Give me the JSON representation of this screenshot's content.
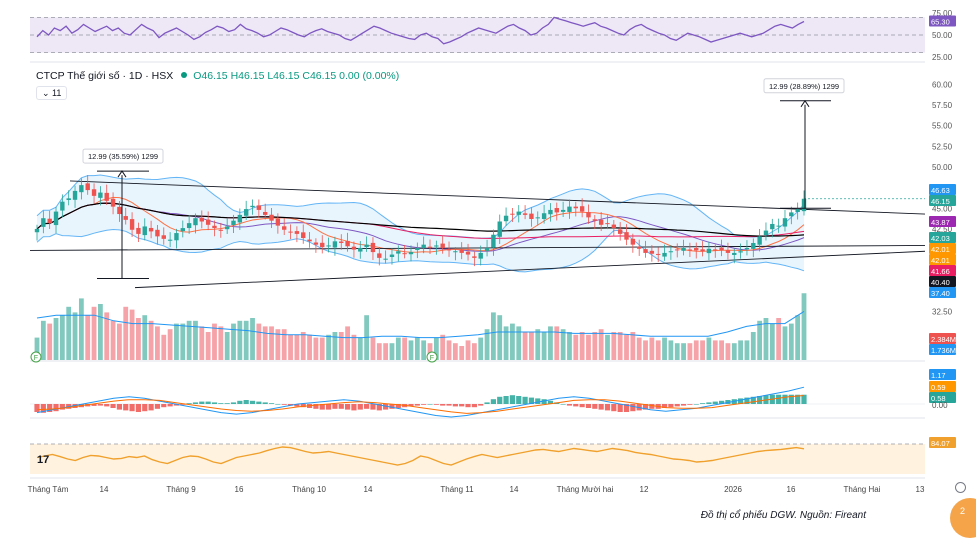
{
  "header": {
    "symbol_line": "CTCP Thế giới số · 1D · HSX",
    "ohlc": "O46.15 H46.15 L46.15 C46.15 0.00 (0.00%)",
    "interval_toggle": "⌄ 11"
  },
  "caption": "Đồ thị cổ phiếu DGW. Nguồn: Fireant",
  "corner_badge": "2",
  "pane_logo": "17",
  "colors": {
    "up": "#26a69a",
    "down": "#ef5350",
    "volume_up": "#81c9be",
    "volume_down": "#f5a3a8",
    "rsi": "#7e57c2",
    "rsi_band": "#ede7f6",
    "bb_fill": "#dbeefc",
    "bb_line": "#64b5f6",
    "stoch_band": "#fff3e0",
    "stoch_line": "#f0a02c"
  },
  "chart_data": [
    {
      "type": "line",
      "name": "RSI",
      "y_ticks": [
        "75.00",
        "50.00",
        "25.00"
      ],
      "ylim": [
        25,
        75
      ],
      "current_label": "65.30",
      "values": [
        48,
        55,
        50,
        58,
        55,
        60,
        52,
        56,
        62,
        58,
        54,
        57,
        60,
        55,
        58,
        52,
        50,
        56,
        62,
        58,
        55,
        47,
        52,
        55,
        58,
        54,
        50,
        45,
        48,
        53,
        56,
        60,
        58,
        54,
        56,
        62,
        57,
        55,
        52,
        48,
        50,
        54,
        58,
        56,
        53,
        50,
        48,
        52,
        55,
        57,
        54,
        52,
        50,
        46,
        44,
        48,
        52,
        56,
        60,
        58,
        55,
        52,
        50,
        48,
        46,
        45,
        50,
        52,
        48,
        46,
        40,
        42,
        45,
        48,
        52,
        55,
        58,
        56,
        54,
        52,
        56,
        60,
        62,
        58,
        55,
        50,
        52,
        58,
        62,
        70,
        68,
        66,
        64,
        62,
        60,
        62,
        64,
        60,
        58,
        55,
        52,
        50,
        56,
        60,
        62,
        58,
        55,
        52,
        50,
        46,
        44,
        48,
        52,
        50,
        48,
        45,
        42,
        44,
        46,
        48,
        50,
        52,
        50,
        48,
        50,
        52,
        56,
        60,
        62,
        60,
        58,
        62,
        65.3
      ]
    },
    {
      "type": "candlestick",
      "name": "Price",
      "y_ticks": [
        "60.00",
        "57.50",
        "55.00",
        "52.50",
        "50.00",
        "47.50",
        "45.00",
        "42.50",
        "40.00",
        "37.50",
        "35.00",
        "32.50"
      ],
      "ylim": [
        31,
        61
      ],
      "x_ticks": [
        "Tháng Tám",
        "14",
        "Tháng 9",
        "16",
        "Tháng 10",
        "14",
        "Tháng 11",
        "14",
        "Tháng Mười hai",
        "12",
        "2026",
        "16",
        "Tháng Hai",
        "13"
      ],
      "price_labels": [
        "46.63",
        "46.15",
        "43.87",
        "42.03",
        "42.01",
        "42.01",
        "41.66",
        "40.40",
        "37.40"
      ],
      "close": [
        42.5,
        43.8,
        43.2,
        44.6,
        45.8,
        46.2,
        47.1,
        47.8,
        47.2,
        46.5,
        46.9,
        45.9,
        45.2,
        44.3,
        43.6,
        42.4,
        41.9,
        42.8,
        42.2,
        41.6,
        41.3,
        41.2,
        42.0,
        42.6,
        43.2,
        43.8,
        43.4,
        43.0,
        42.6,
        42.3,
        42.8,
        43.5,
        44.2,
        44.9,
        45.3,
        44.8,
        44.2,
        43.5,
        42.9,
        42.4,
        42.1,
        41.9,
        41.4,
        41.0,
        40.6,
        40.3,
        40.5,
        41.0,
        40.8,
        40.4,
        40.0,
        40.2,
        40.6,
        39.7,
        39.0,
        38.9,
        39.4,
        39.8,
        39.5,
        39.7,
        40.2,
        40.6,
        40.3,
        40.5,
        40.2,
        39.9,
        39.8,
        39.6,
        39.4,
        39.0,
        39.6,
        40.2,
        41.8,
        43.4,
        44.1,
        44.3,
        44.6,
        44.2,
        43.7,
        43.9,
        44.4,
        44.8,
        44.5,
        44.8,
        45.2,
        45.0,
        44.6,
        43.9,
        43.5,
        43.0,
        43.2,
        42.6,
        41.9,
        41.2,
        40.6,
        40.1,
        39.6,
        39.5,
        39.4,
        39.6,
        39.8,
        40.0,
        40.2,
        40.0,
        39.9,
        39.8,
        40.1,
        40.0,
        39.9,
        39.6,
        39.6,
        39.8,
        40.2,
        40.8,
        41.6,
        42.3,
        43.1,
        42.9,
        43.8,
        44.5,
        44.9,
        46.15
      ],
      "line_tool_left": {
        "label": "12.99 (35.59%) 1299",
        "from": 36.5,
        "to": 49.5
      },
      "line_tool_right": {
        "label": "12.99 (28.89%) 1299",
        "from": 45.0,
        "to": 58.0
      }
    },
    {
      "type": "bar",
      "name": "Volume",
      "current_labels": [
        "2.384M",
        "1.736M"
      ],
      "values": [
        0.8,
        1.4,
        1.3,
        1.5,
        1.6,
        1.9,
        1.7,
        2.2,
        1.6,
        1.9,
        2.0,
        1.7,
        1.4,
        1.3,
        1.9,
        1.8,
        1.5,
        1.6,
        1.4,
        1.2,
        0.9,
        1.1,
        1.3,
        1.3,
        1.4,
        1.4,
        1.2,
        1.0,
        1.3,
        1.2,
        1.0,
        1.3,
        1.4,
        1.4,
        1.5,
        1.3,
        1.2,
        1.2,
        1.1,
        1.1,
        0.9,
        0.9,
        1.0,
        0.9,
        0.8,
        0.8,
        0.9,
        1.0,
        1.0,
        1.2,
        0.9,
        0.8,
        1.6,
        0.8,
        0.6,
        0.6,
        0.6,
        0.8,
        0.8,
        0.7,
        0.8,
        0.7,
        0.6,
        0.8,
        0.9,
        0.7,
        0.6,
        0.5,
        0.7,
        0.6,
        0.8,
        1.1,
        1.7,
        1.6,
        1.2,
        1.3,
        1.2,
        1.0,
        1.0,
        1.1,
        1.0,
        1.2,
        1.2,
        1.1,
        1.0,
        0.9,
        1.0,
        0.9,
        1.0,
        1.1,
        0.9,
        1.0,
        1.0,
        0.9,
        1.0,
        0.8,
        0.7,
        0.8,
        0.7,
        0.8,
        0.7,
        0.6,
        0.6,
        0.6,
        0.7,
        0.7,
        0.8,
        0.7,
        0.7,
        0.6,
        0.6,
        0.7,
        0.7,
        1.0,
        1.4,
        1.5,
        1.3,
        1.5,
        1.2,
        1.3,
        1.6,
        2.384
      ],
      "ma": [
        1.5,
        1.6,
        1.6,
        1.6,
        1.4,
        1.3,
        1.3,
        1.25,
        1.2,
        1.15,
        1.1,
        1.05,
        0.95,
        0.9,
        0.9,
        0.85,
        0.8,
        0.8,
        0.85,
        0.85,
        0.8,
        0.8,
        0.85,
        0.9,
        1.0,
        1.0,
        1.0,
        1.0,
        0.95,
        0.95,
        0.95,
        0.9,
        0.85,
        0.85,
        0.85,
        0.85,
        1.0,
        1.2,
        1.3,
        1.3,
        1.736
      ]
    },
    {
      "type": "bar",
      "name": "MACD",
      "labels": [
        "1.17",
        "0.59",
        "0.58",
        "0.00"
      ],
      "histogram": [
        -0.5,
        -0.55,
        -0.5,
        -0.45,
        -0.35,
        -0.3,
        -0.25,
        -0.2,
        -0.15,
        -0.12,
        -0.1,
        -0.15,
        -0.25,
        -0.35,
        -0.4,
        -0.45,
        -0.5,
        -0.45,
        -0.4,
        -0.3,
        -0.2,
        -0.15,
        -0.1,
        -0.05,
        0.05,
        0.1,
        0.15,
        0.15,
        0.1,
        0.05,
        0.05,
        0.1,
        0.2,
        0.25,
        0.2,
        0.15,
        0.1,
        0.05,
        0.0,
        -0.05,
        -0.1,
        -0.15,
        -0.2,
        -0.25,
        -0.3,
        -0.35,
        -0.35,
        -0.3,
        -0.3,
        -0.35,
        -0.4,
        -0.35,
        -0.3,
        -0.35,
        -0.4,
        -0.35,
        -0.3,
        -0.25,
        -0.2,
        -0.15,
        -0.1,
        -0.05,
        0.0,
        -0.05,
        -0.1,
        -0.1,
        -0.15,
        -0.15,
        -0.2,
        -0.2,
        -0.1,
        0.1,
        0.3,
        0.45,
        0.5,
        0.55,
        0.5,
        0.45,
        0.4,
        0.35,
        0.3,
        0.2,
        0.1,
        0.0,
        -0.1,
        -0.15,
        -0.2,
        -0.25,
        -0.3,
        -0.35,
        -0.4,
        -0.45,
        -0.5,
        -0.5,
        -0.45,
        -0.4,
        -0.35,
        -0.3,
        -0.3,
        -0.25,
        -0.2,
        -0.15,
        -0.1,
        -0.05,
        0.0,
        0.05,
        0.1,
        0.15,
        0.2,
        0.25,
        0.3,
        0.35,
        0.4,
        0.45,
        0.5,
        0.55,
        0.58,
        0.58,
        0.58,
        0.58,
        0.58,
        0.58
      ],
      "macd_line": [
        -0.6,
        -0.4,
        -0.2,
        0.0,
        0.2,
        0.4,
        0.5,
        0.4,
        0.2,
        0.0,
        -0.2,
        -0.4,
        -0.6,
        -0.7,
        -0.6,
        -0.4,
        -0.2,
        0.0,
        0.1,
        0.2,
        0.3,
        0.2,
        0.0,
        -0.2,
        -0.4,
        -0.6,
        -0.8,
        -0.9,
        -0.8,
        -0.6,
        -0.4,
        -0.2,
        0.0,
        0.2,
        0.4,
        0.5,
        0.4,
        0.2,
        0.0,
        -0.2,
        -0.4,
        -0.5,
        -0.4,
        -0.3,
        -0.1,
        0.1,
        0.3,
        0.5,
        0.7,
        0.9,
        1.17
      ],
      "signal_line": [
        -0.4,
        -0.35,
        -0.25,
        -0.1,
        0.05,
        0.2,
        0.3,
        0.3,
        0.25,
        0.1,
        -0.05,
        -0.2,
        -0.35,
        -0.45,
        -0.5,
        -0.45,
        -0.35,
        -0.2,
        -0.1,
        0.0,
        0.1,
        0.15,
        0.1,
        0.0,
        -0.1,
        -0.25,
        -0.4,
        -0.55,
        -0.65,
        -0.6,
        -0.5,
        -0.35,
        -0.2,
        -0.05,
        0.1,
        0.25,
        0.3,
        0.3,
        0.2,
        0.05,
        -0.1,
        -0.25,
        -0.3,
        -0.3,
        -0.25,
        -0.1,
        0.05,
        0.2,
        0.35,
        0.5,
        0.59
      ]
    },
    {
      "type": "line",
      "name": "Oscillator",
      "current_label": "84.07",
      "ylim": [
        0,
        100
      ],
      "values": [
        55,
        60,
        65,
        58,
        50,
        45,
        55,
        62,
        60,
        55,
        50,
        52,
        58,
        55,
        60,
        48,
        40,
        35,
        45,
        55,
        60,
        58,
        50,
        40,
        35,
        45,
        55,
        60,
        65,
        70,
        78,
        85,
        90,
        88,
        82,
        75,
        70,
        72,
        75,
        70,
        65,
        60,
        55,
        50,
        45,
        40,
        35,
        30,
        35,
        45,
        60,
        55,
        45,
        35,
        30,
        40,
        50,
        58,
        65,
        60,
        55,
        60,
        65,
        70,
        75,
        80,
        82,
        78,
        75,
        80,
        85,
        82,
        78,
        75,
        80,
        85,
        82,
        78,
        72,
        68,
        65,
        60,
        55,
        50,
        48,
        45,
        40,
        42,
        45,
        50,
        55,
        60,
        65,
        70,
        75,
        78,
        80,
        82,
        85,
        88,
        84.07
      ]
    }
  ]
}
